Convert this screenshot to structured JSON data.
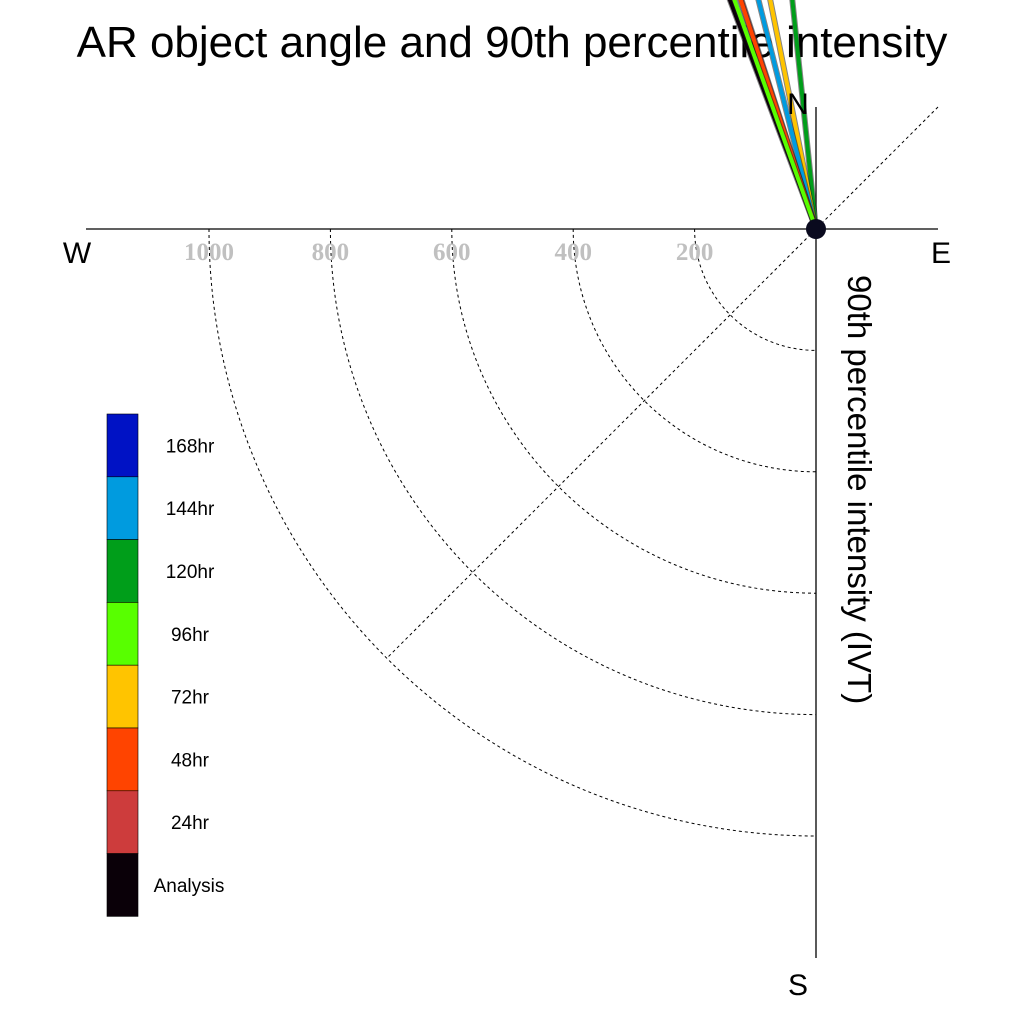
{
  "chart_data": {
    "type": "polar-vector",
    "title": "AR object angle and 90th percentile intensity",
    "radial_label": "90th percentile intensity (IVT)",
    "compass": {
      "north": "N",
      "south": "S",
      "east": "E",
      "west": "W"
    },
    "radial_ticks": [
      1000,
      800,
      600,
      400,
      200
    ],
    "radial_tick_labels": [
      "1000",
      "800",
      "600",
      "400",
      "200"
    ],
    "rmax": 1200,
    "grid": true,
    "legend_placement": "left",
    "series": [
      {
        "name": "Analysis",
        "color": "#0a0008",
        "angle_deg": 110.6,
        "intensity": 700
      },
      {
        "name": "24hr",
        "color": "#cd3c3c",
        "angle_deg": 108.0,
        "intensity": 624
      },
      {
        "name": "48hr",
        "color": "#ff4400",
        "angle_deg": 108.2,
        "intensity": 632
      },
      {
        "name": "72hr",
        "color": "#ffc400",
        "angle_deg": 101.3,
        "intensity": 680
      },
      {
        "name": "96hr",
        "color": "#58ff00",
        "angle_deg": 109.6,
        "intensity": 714
      },
      {
        "name": "120hr",
        "color": "#009e1a",
        "angle_deg": 95.9,
        "intensity": 750
      },
      {
        "name": "144hr",
        "color": "#009bdf",
        "angle_deg": 104.1,
        "intensity": 592
      },
      {
        "name": "168hr",
        "color": "#0012c5",
        "angle_deg": null,
        "intensity": null
      }
    ]
  }
}
